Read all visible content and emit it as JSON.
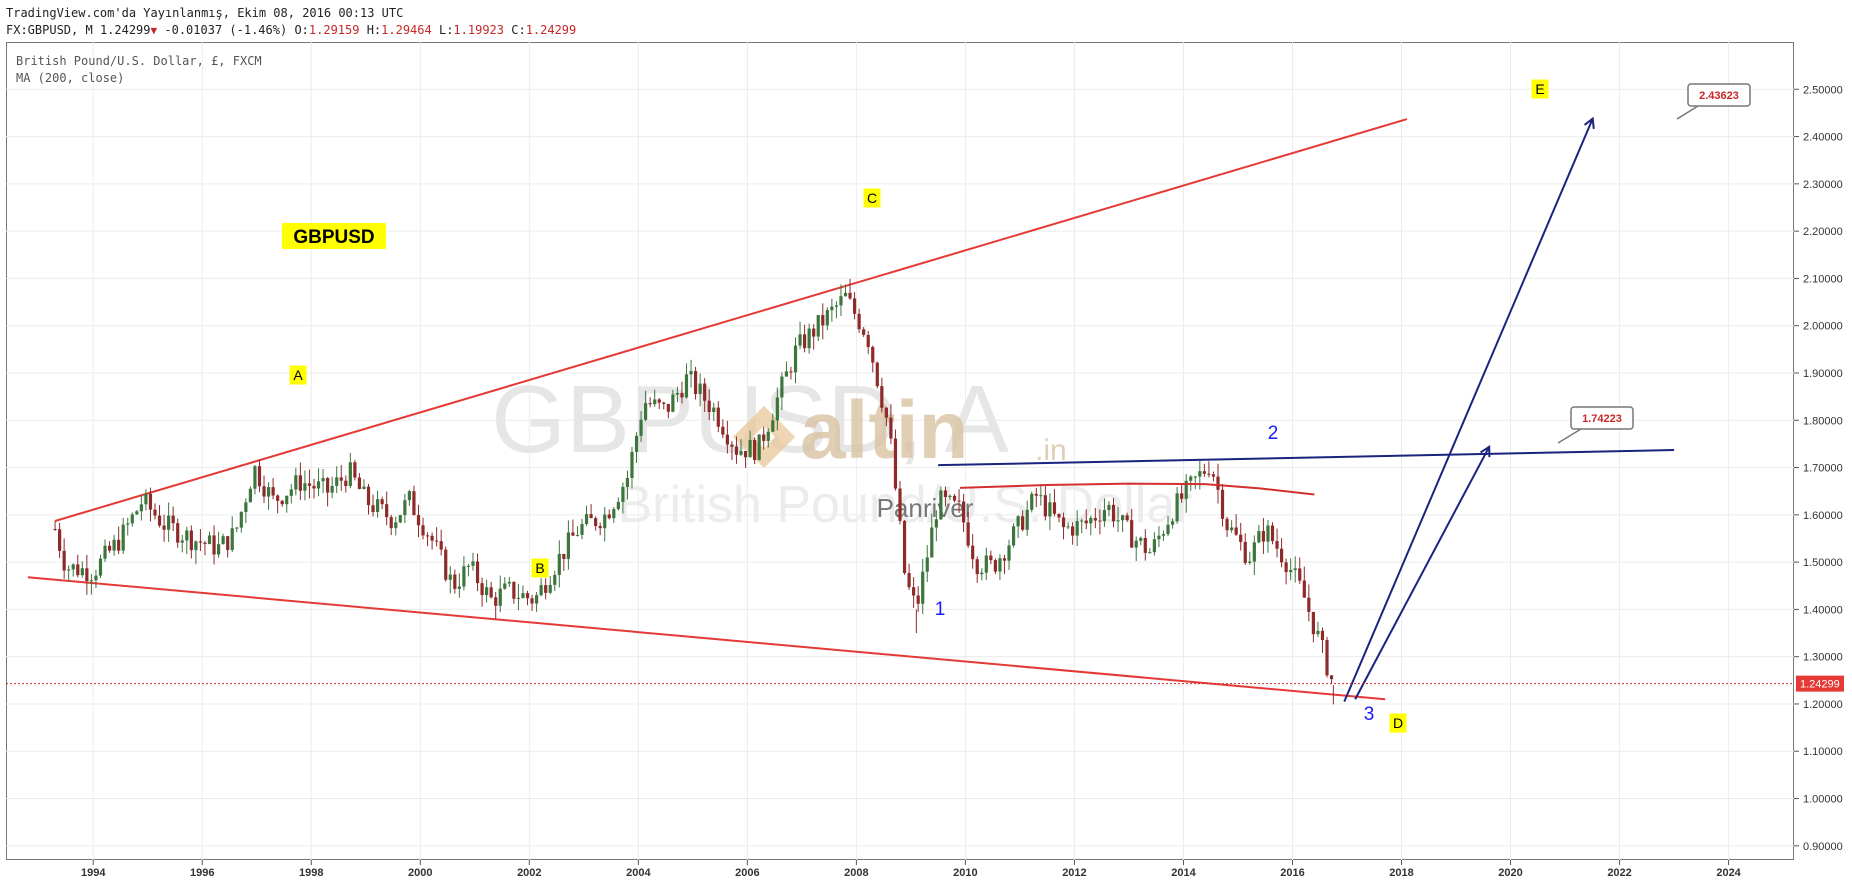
{
  "header": {
    "published": "TradingView.com'da Yayınlanmış, Ekim 08, 2016 00:13 UTC",
    "symbol_line": "FX:GBPUSD, M",
    "last": "1.24299",
    "change": "-0.01037 (-1.46%)",
    "open_label": "O:",
    "open": "1.29159",
    "high_label": "H:",
    "high": "1.29464",
    "low_label": "L:",
    "low": "1.19923",
    "close_label": "C:",
    "close": "1.24299"
  },
  "symbol_info": {
    "name": "British Pound/U.S. Dollar, £, FXCM",
    "indicator": "MA (200, close)"
  },
  "watermark": {
    "symbol": "GBPUSD, A",
    "description": "British Pound/U.S. Dollar",
    "logo_text": "altin",
    "logo_suffix": ".in",
    "author": "Panriver"
  },
  "labels": {
    "title_box": "GBPUSD",
    "wave_A": "A",
    "wave_B": "B",
    "wave_C": "C",
    "wave_D": "D",
    "wave_E": "E",
    "num_1": "1",
    "num_2": "2",
    "num_3": "3"
  },
  "callouts": {
    "target_high": "2.43623",
    "target_mid": "1.74223"
  },
  "price_tag": "1.24299",
  "colors": {
    "up": "#3c763d",
    "down": "#8e2a2a",
    "trendline": "#e53935",
    "blue": "#1a237e",
    "ma": "#d32f2f",
    "label_bg": "#ffff00",
    "callout_text": "#c62828"
  },
  "chart_data": {
    "type": "candlestick",
    "interval": "monthly",
    "x_ticks": [
      "1994",
      "1996",
      "1998",
      "2000",
      "2002",
      "2004",
      "2006",
      "2008",
      "2010",
      "2012",
      "2014",
      "2016",
      "2018",
      "2020",
      "2022",
      "2024"
    ],
    "y_ticks": [
      "0.90000",
      "1.00000",
      "1.10000",
      "1.20000",
      "1.30000",
      "1.40000",
      "1.50000",
      "1.60000",
      "1.70000",
      "1.80000",
      "1.90000",
      "2.00000",
      "2.10000",
      "2.20000",
      "2.30000",
      "2.40000",
      "2.50000"
    ],
    "ylim": [
      0.87,
      2.6
    ],
    "xlim": [
      1992.4,
      2025.2
    ],
    "path": [
      [
        1993.3,
        1.57
      ],
      [
        1993.5,
        1.49
      ],
      [
        1994.0,
        1.48
      ],
      [
        1994.5,
        1.55
      ],
      [
        1994.9,
        1.63
      ],
      [
        1995.3,
        1.58
      ],
      [
        1995.8,
        1.55
      ],
      [
        1996.3,
        1.53
      ],
      [
        1996.6,
        1.56
      ],
      [
        1996.95,
        1.7
      ],
      [
        1997.3,
        1.63
      ],
      [
        1997.8,
        1.67
      ],
      [
        1998.3,
        1.65
      ],
      [
        1998.7,
        1.69
      ],
      [
        1999.0,
        1.63
      ],
      [
        1999.5,
        1.59
      ],
      [
        1999.8,
        1.63
      ],
      [
        2000.2,
        1.55
      ],
      [
        2000.6,
        1.45
      ],
      [
        2000.9,
        1.49
      ],
      [
        2001.3,
        1.42
      ],
      [
        2001.6,
        1.44
      ],
      [
        2002.1,
        1.42
      ],
      [
        2002.5,
        1.5
      ],
      [
        2002.9,
        1.57
      ],
      [
        2003.4,
        1.6
      ],
      [
        2003.8,
        1.68
      ],
      [
        2004.1,
        1.84
      ],
      [
        2004.5,
        1.82
      ],
      [
        2004.9,
        1.89
      ],
      [
        2005.4,
        1.82
      ],
      [
        2005.8,
        1.74
      ],
      [
        2006.2,
        1.74
      ],
      [
        2006.6,
        1.86
      ],
      [
        2006.9,
        1.95
      ],
      [
        2007.3,
        2.0
      ],
      [
        2007.8,
        2.06
      ],
      [
        2008.2,
        1.98
      ],
      [
        2008.6,
        1.78
      ],
      [
        2008.9,
        1.46
      ],
      [
        2009.1,
        1.4
      ],
      [
        2009.5,
        1.63
      ],
      [
        2009.9,
        1.61
      ],
      [
        2010.2,
        1.5
      ],
      [
        2010.5,
        1.49
      ],
      [
        2010.9,
        1.56
      ],
      [
        2011.3,
        1.64
      ],
      [
        2011.8,
        1.57
      ],
      [
        2012.2,
        1.58
      ],
      [
        2012.6,
        1.62
      ],
      [
        2013.0,
        1.56
      ],
      [
        2013.4,
        1.52
      ],
      [
        2013.8,
        1.61
      ],
      [
        2014.2,
        1.67
      ],
      [
        2014.5,
        1.71
      ],
      [
        2014.8,
        1.58
      ],
      [
        2015.2,
        1.51
      ],
      [
        2015.5,
        1.57
      ],
      [
        2015.9,
        1.5
      ],
      [
        2016.2,
        1.43
      ],
      [
        2016.5,
        1.33
      ],
      [
        2016.75,
        1.24
      ]
    ],
    "wicks": [
      [
        2009.1,
        1.35
      ],
      [
        2016.75,
        1.1992
      ]
    ],
    "moving_average": {
      "name": "MA (200, close)",
      "points": [
        [
          2009.9,
          1.657
        ],
        [
          2011.5,
          1.663
        ],
        [
          2013.0,
          1.666
        ],
        [
          2014.4,
          1.665
        ],
        [
          2015.4,
          1.656
        ],
        [
          2016.4,
          1.643
        ]
      ]
    },
    "lines": [
      {
        "name": "upper",
        "color": "#e53935",
        "p1": [
          1993.3,
          1.587
        ],
        "p2": [
          2018.1,
          2.437
        ]
      },
      {
        "name": "lower",
        "color": "#e53935",
        "p1": [
          1992.8,
          1.468
        ],
        "p2": [
          2017.7,
          1.21
        ]
      },
      {
        "name": "resistance",
        "color": "#1a237e",
        "p1": [
          2009.5,
          1.705
        ],
        "p2": [
          2023.0,
          1.737
        ]
      },
      {
        "name": "target1",
        "color": "#1a237e",
        "arrow": true,
        "p1": [
          2016.95,
          1.205
        ],
        "p2": [
          2021.5,
          2.436
        ]
      },
      {
        "name": "target2",
        "color": "#1a237e",
        "arrow": true,
        "p1": [
          2017.15,
          1.21
        ],
        "p2": [
          2019.6,
          1.742
        ]
      }
    ],
    "last_price": 1.24299
  }
}
